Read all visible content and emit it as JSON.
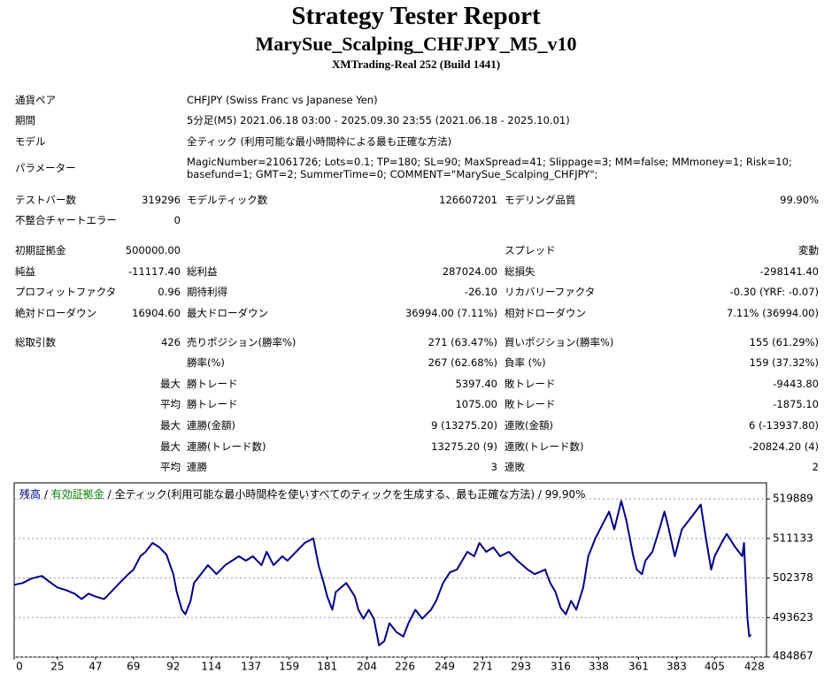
{
  "header": {
    "title": "Strategy Tester Report",
    "subtitle": "MarySue_Scalping_CHFJPY_M5_v10",
    "server": "XMTrading-Real 252 (Build 1441)"
  },
  "report": {
    "rows": [
      {
        "l1": "通貨ペア",
        "wide": "CHFJPY (Swiss Franc vs Japanese Yen)"
      },
      {
        "l1": "期間",
        "wide": "5分足(M5) 2021.06.18 03:00 - 2025.09.30 23:55 (2021.06.18 - 2025.10.01)"
      },
      {
        "l1": "モデル",
        "wide": "全ティック (利用可能な最小時間枠による最も正確な方法)"
      },
      {
        "l1": "パラメーター",
        "wide": "MagicNumber=21061726; Lots=0.1; TP=180; SL=90; MaxSpread=41; Slippage=3; MM=false; MMmoney=1; Risk=10; basefund=1; GMT=2; SummerTime=0; COMMENT=\"MarySue_Scalping_CHFJPY\";"
      },
      {
        "l1": "テストバー数",
        "v1": "319296",
        "l2": "モデルティック数",
        "v2": "126607201",
        "l3": "モデリング品質",
        "v3": "99.90%"
      },
      {
        "l1": "不整合チャートエラー",
        "v1": "0"
      },
      {
        "l1": "初期証拠金",
        "v1": "500000.00",
        "l3": "スプレッド",
        "v3": "変動"
      },
      {
        "l1": "純益",
        "v1": "-11117.40",
        "l2": "総利益",
        "v2": "287024.00",
        "l3": "総損失",
        "v3": "-298141.40"
      },
      {
        "l1": "プロフィットファクタ",
        "v1": "0.96",
        "l2": "期待利得",
        "v2": "-26.10",
        "l3": "リカバリーファクタ",
        "v3": "-0.30 (YRF: -0.07)"
      },
      {
        "l1": "絶対ドローダウン",
        "v1": "16904.60",
        "l2": "最大ドローダウン",
        "v2": "36994.00 (7.11%)",
        "l3": "相対ドローダウン",
        "v3": "7.11% (36994.00)"
      },
      {
        "l1": "総取引数",
        "v1": "426",
        "l2": "売りポジション(勝率%)",
        "v2": "271 (63.47%)",
        "l3": "買いポジション(勝率%)",
        "v3": "155 (61.29%)"
      },
      {
        "l2": "勝率(%)",
        "v2": "267 (62.68%)",
        "l3": "負率 (%)",
        "v3": "159 (37.32%)"
      },
      {
        "v1": "最大",
        "l2": "勝トレード",
        "v2": "5397.40",
        "l3": "敗トレード",
        "v3": "-9443.80"
      },
      {
        "v1": "平均",
        "l2": "勝トレード",
        "v2": "1075.00",
        "l3": "敗トレード",
        "v3": "-1875.10"
      },
      {
        "v1": "最大",
        "l2": "連勝(金額)",
        "v2": "9 (13275.20)",
        "l3": "連敗(金額)",
        "v3": "6 (-13937.80)"
      },
      {
        "v1": "最大",
        "l2": "連勝(トレード数)",
        "v2": "13275.20 (9)",
        "l3": "連敗(トレード数)",
        "v3": "-20824.20 (4)"
      },
      {
        "v1": "平均",
        "l2": "連勝",
        "v2": "3",
        "l3": "連敗",
        "v3": "2"
      }
    ]
  },
  "chart_data": {
    "type": "line",
    "legend_separator": "/",
    "legend_note": "全ティック(利用可能な最小時間枠を使いすべてのティックを生成する、最も正確な方法)",
    "quality": "99.90%",
    "extra_legend": [
      {
        "name": "有効証拠金",
        "color": "#008000"
      }
    ],
    "x": [
      0,
      5,
      10,
      16,
      20,
      25,
      30,
      35,
      39,
      43,
      47,
      52,
      56,
      61,
      66,
      69,
      73,
      76,
      80,
      84,
      88,
      92,
      94,
      97,
      99,
      102,
      104,
      108,
      112,
      117,
      122,
      126,
      130,
      134,
      138,
      143,
      146,
      150,
      155,
      158,
      163,
      168,
      173,
      176,
      179,
      181,
      184,
      186,
      189,
      192,
      197,
      199,
      202,
      205,
      208,
      211,
      214,
      217,
      221,
      225,
      228,
      232,
      236,
      241,
      244,
      248,
      252,
      256,
      259,
      262,
      266,
      269,
      273,
      277,
      281,
      286,
      291,
      297,
      301,
      307,
      310,
      313,
      316,
      319,
      322,
      325,
      329,
      332,
      336,
      340,
      344,
      347,
      351,
      354,
      358,
      360,
      363,
      365,
      369,
      373,
      376,
      378,
      382,
      386,
      390,
      394,
      397,
      400,
      403,
      405,
      409,
      412,
      417,
      421,
      422,
      423,
      424,
      425,
      426
    ],
    "series": [
      {
        "name": "残高",
        "color": "#00008b",
        "values": [
          500870,
          501270,
          502260,
          502850,
          501660,
          500280,
          499690,
          498900,
          497710,
          498900,
          498300,
          497710,
          499290,
          501270,
          503240,
          504230,
          507200,
          508180,
          510160,
          509170,
          507590,
          503240,
          499290,
          495340,
          494350,
          497320,
          501270,
          503240,
          505220,
          503240,
          505220,
          506210,
          507200,
          506210,
          507200,
          505220,
          508180,
          505220,
          507200,
          506210,
          508180,
          510160,
          511150,
          505220,
          501270,
          498300,
          495340,
          499290,
          500280,
          501270,
          498300,
          495340,
          493360,
          495340,
          493360,
          487440,
          488420,
          492380,
          490400,
          489410,
          492380,
          495340,
          493360,
          495340,
          497320,
          501270,
          503640,
          504230,
          506210,
          508180,
          507200,
          510160,
          508180,
          509170,
          507200,
          508180,
          506210,
          504230,
          503240,
          504230,
          501270,
          499290,
          495740,
          494350,
          497320,
          495340,
          500280,
          507200,
          511150,
          514110,
          517080,
          513120,
          519450,
          515100,
          507200,
          504230,
          503240,
          506210,
          508180,
          513120,
          517080,
          514110,
          507200,
          513120,
          515100,
          517080,
          518660,
          511150,
          504230,
          507200,
          510160,
          512140,
          509170,
          507200,
          510160,
          501270,
          493360,
          489410,
          489810
        ]
      }
    ],
    "xlim": [
      0,
      435
    ],
    "xticks": [
      0,
      25,
      47,
      69,
      92,
      114,
      137,
      159,
      181,
      204,
      226,
      249,
      271,
      293,
      316,
      338,
      361,
      383,
      405,
      428
    ],
    "ylim": [
      484867,
      523450
    ],
    "yticks": [
      484867,
      493623,
      502378,
      511133,
      519889
    ],
    "grid": true
  }
}
